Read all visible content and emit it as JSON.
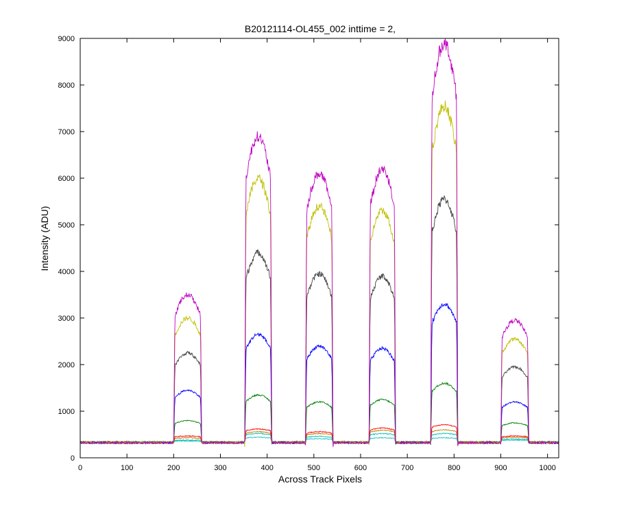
{
  "chart_data": {
    "type": "line",
    "title": "B20121114-OL455_002 inttime = 2,",
    "xlabel": "Across Track Pixels",
    "ylabel": "Intensity (ADU)",
    "xlim": [
      0,
      1024
    ],
    "ylim": [
      0,
      9000
    ],
    "grid": false,
    "legend": "none",
    "xticks": [
      0,
      100,
      200,
      300,
      400,
      500,
      600,
      700,
      800,
      900,
      1000
    ],
    "yticks": [
      0,
      1000,
      2000,
      3000,
      4000,
      5000,
      6000,
      7000,
      8000,
      9000
    ],
    "baseline": 330,
    "peaks": [
      {
        "x_start": 200,
        "x_end": 260
      },
      {
        "x_start": 352,
        "x_end": 410
      },
      {
        "x_start": 482,
        "x_end": 541
      },
      {
        "x_start": 618,
        "x_end": 675
      },
      {
        "x_start": 750,
        "x_end": 808
      },
      {
        "x_start": 900,
        "x_end": 960
      }
    ],
    "series": [
      {
        "color": "#bf00bf",
        "peak_values": [
          3500,
          6900,
          6100,
          6200,
          8900,
          2950
        ]
      },
      {
        "color": "#bfbf00",
        "peak_values": [
          3000,
          6000,
          5400,
          5300,
          7550,
          2550
        ]
      },
      {
        "color": "#404040",
        "peak_values": [
          2250,
          4400,
          3950,
          3900,
          5550,
          1950
        ]
      },
      {
        "color": "#0000ff",
        "peak_values": [
          1450,
          2650,
          2400,
          2350,
          3300,
          1200
        ]
      },
      {
        "color": "#008000",
        "peak_values": [
          800,
          1350,
          1200,
          1250,
          1600,
          750
        ]
      },
      {
        "color": "#ff0000",
        "peak_values": [
          470,
          620,
          560,
          640,
          710,
          470
        ]
      },
      {
        "color": "#c08000",
        "peak_values": [
          430,
          560,
          520,
          590,
          600,
          440
        ]
      },
      {
        "color": "#00bfbf",
        "peak_values": [
          380,
          520,
          460,
          520,
          520,
          400
        ]
      },
      {
        "color": "#20c0c0",
        "peak_values": [
          360,
          440,
          410,
          430,
          430,
          380
        ]
      }
    ]
  }
}
